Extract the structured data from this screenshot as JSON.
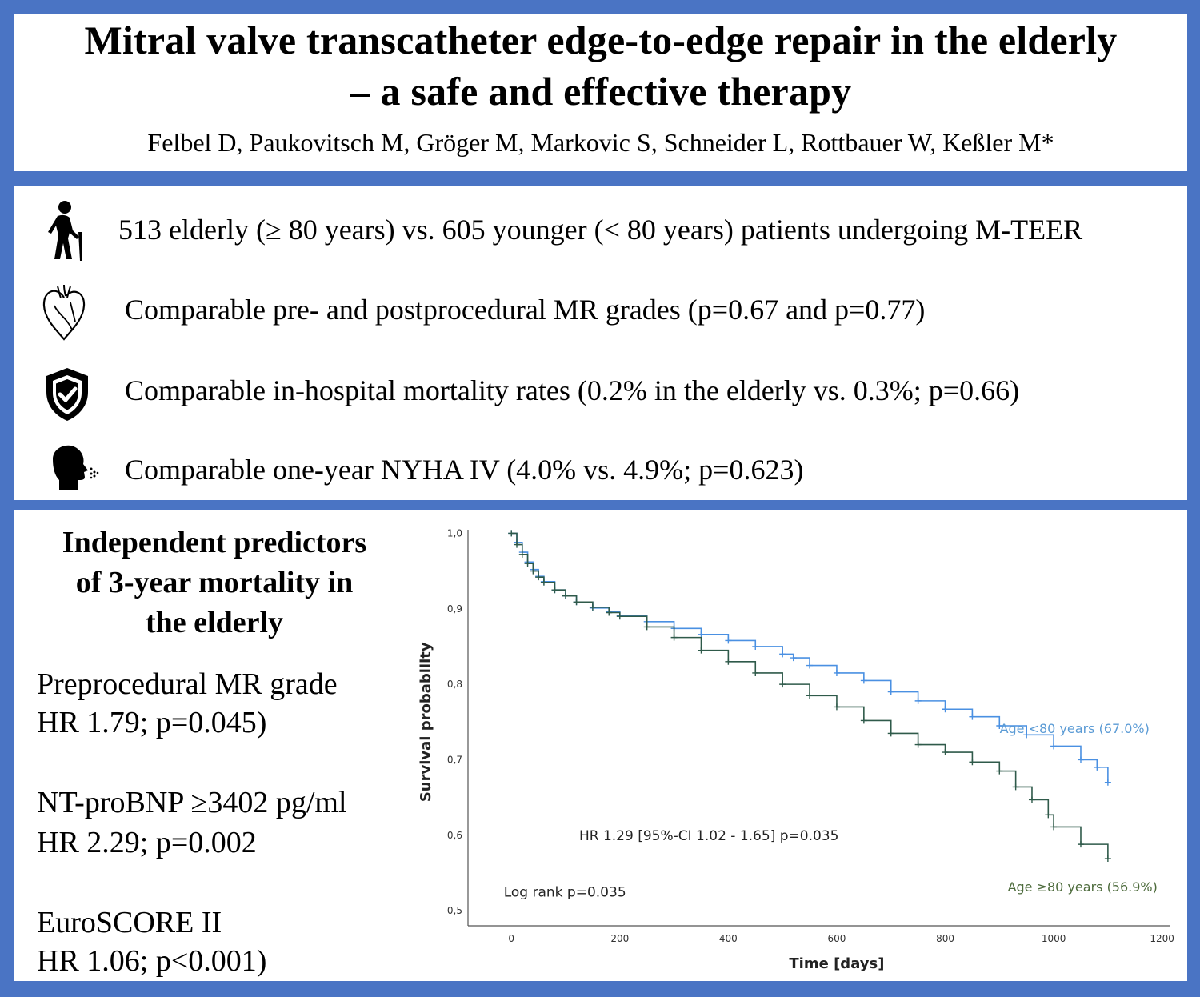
{
  "header": {
    "title_line_1": "Mitral valve transcatheter edge-to-edge repair in the elderly",
    "title_line_2": "– a safe and effective therapy",
    "authors": "Felbel D, Paukovitsch M, Gröger M, Markovic S, Schneider L, Rottbauer W, Keßler M*"
  },
  "findings": [
    {
      "icon": "elderly-person-icon",
      "text": "513 elderly (≥ 80 years) vs. 605 younger (< 80 years) patients undergoing M-TEER"
    },
    {
      "icon": "heart-icon",
      "text": "Comparable pre- and postprocedural MR grades (p=0.67 and p=0.77)"
    },
    {
      "icon": "shield-check-icon",
      "text": "Comparable in-hospital mortality rates (0.2% in the elderly vs. 0.3%; p=0.66)"
    },
    {
      "icon": "breathing-head-icon",
      "text": "Comparable one-year NYHA IV (4.0% vs. 4.9%; p=0.623)"
    }
  ],
  "predictors": {
    "title_line_1": "Independent predictors",
    "title_line_2": "of 3-year mortality in",
    "title_line_3": "the elderly",
    "items": [
      {
        "name": "Preprocedural MR grade",
        "stat": "HR 1.79; p=0.045)"
      },
      {
        "name": "NT-proBNP ≥3402 pg/ml",
        "stat": "HR 2.29; p=0.002"
      },
      {
        "name": "EuroSCORE II",
        "stat": "HR 1.06; p<0.001)"
      }
    ]
  },
  "chart_data": {
    "type": "line",
    "title": "",
    "xlabel": "Time [days]",
    "ylabel": "Survival probability",
    "xlim": [
      -80,
      1230
    ],
    "ylim": [
      0.48,
      1.01
    ],
    "xticks": [
      0,
      200,
      400,
      600,
      800,
      1000,
      1200
    ],
    "yticks": [
      0.5,
      0.6,
      0.7,
      0.8,
      0.9,
      1.0
    ],
    "ytick_labels": [
      "0,5",
      "0,6",
      "0,7",
      "0,8",
      "0,9",
      "1,0"
    ],
    "colors": {
      "younger": "#4a90e2",
      "elderly": "#2f5a4a",
      "label_younger": "#5b9bd5",
      "label_elderly": "#4d6b3c"
    },
    "series": [
      {
        "name": "Age <80 years (67.0%)",
        "x": [
          0,
          10,
          20,
          30,
          40,
          50,
          60,
          80,
          100,
          120,
          150,
          180,
          200,
          250,
          300,
          350,
          400,
          450,
          500,
          520,
          550,
          600,
          650,
          700,
          750,
          800,
          850,
          900,
          950,
          1000,
          1050,
          1080,
          1100
        ],
        "y": [
          1.0,
          0.988,
          0.975,
          0.962,
          0.952,
          0.943,
          0.936,
          0.925,
          0.917,
          0.909,
          0.901,
          0.896,
          0.891,
          0.883,
          0.874,
          0.866,
          0.858,
          0.85,
          0.84,
          0.835,
          0.825,
          0.815,
          0.805,
          0.79,
          0.778,
          0.767,
          0.757,
          0.745,
          0.733,
          0.718,
          0.7,
          0.69,
          0.67
        ]
      },
      {
        "name": "Age ≥80 years (56.9%)",
        "x": [
          0,
          10,
          20,
          30,
          40,
          50,
          60,
          80,
          100,
          120,
          150,
          180,
          200,
          250,
          300,
          350,
          400,
          450,
          500,
          550,
          600,
          650,
          700,
          750,
          800,
          850,
          900,
          930,
          960,
          990,
          1000,
          1050,
          1100
        ],
        "y": [
          1.0,
          0.985,
          0.972,
          0.96,
          0.95,
          0.942,
          0.935,
          0.925,
          0.917,
          0.909,
          0.902,
          0.895,
          0.89,
          0.876,
          0.862,
          0.845,
          0.83,
          0.815,
          0.8,
          0.785,
          0.77,
          0.752,
          0.735,
          0.72,
          0.71,
          0.697,
          0.685,
          0.664,
          0.647,
          0.627,
          0.611,
          0.588,
          0.569
        ]
      }
    ],
    "annotations": {
      "hr_text": "HR 1.29 [95%-CI 1.02 - 1.65] p=0.035",
      "logrank_text": "Log rank p=0.035",
      "label_younger": "Age <80 years (67.0%)",
      "label_elderly": "Age ≥80 years (56.9%)"
    }
  }
}
